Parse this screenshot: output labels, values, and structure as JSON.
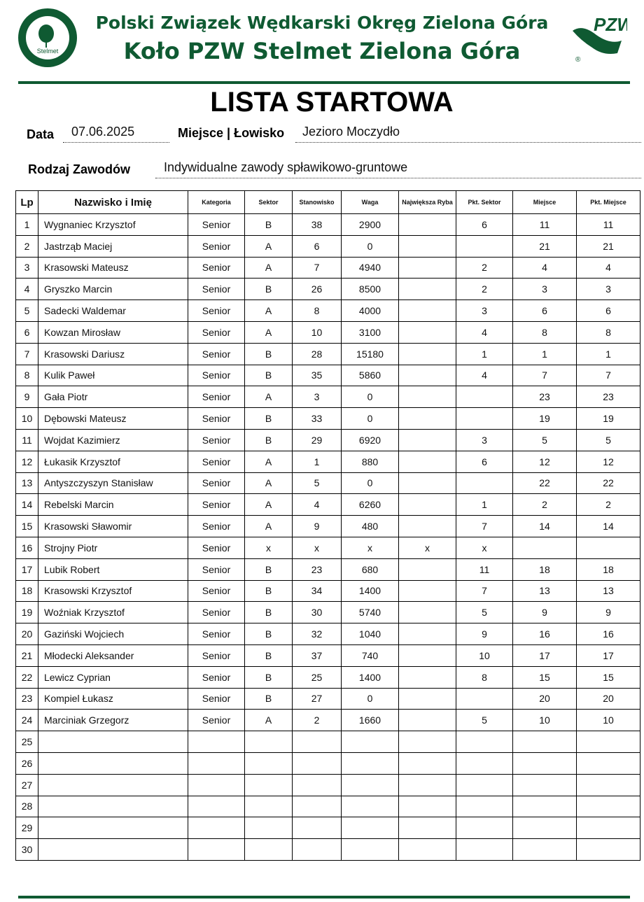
{
  "header": {
    "line1": "Polski Związek Wędkarski Okręg Zielona Góra",
    "line2": "Koło PZW Stelmet Zielona Góra",
    "logo_left": {
      "ring_top": "POLSKI ZWIĄZEK WĘDKARSKI",
      "ring_bottom": "KOŁO ZIELONA GÓRA",
      "center": "Stelmet"
    },
    "logo_right": {
      "text": "PZW",
      "mark": "®"
    },
    "color": "#0f5a32"
  },
  "title": "LISTA STARTOWA",
  "form": {
    "date_label": "Data",
    "date_value": "07.06.2025",
    "place_label": "Miejsce | Łowisko",
    "place_value": "Jezioro Moczydło",
    "type_label": "Rodzaj Zawodów",
    "type_value": "Indywidualne zawody spławikowo-gruntowe"
  },
  "table": {
    "columns": [
      "Lp",
      "Nazwisko i Imię",
      "Kategoria",
      "Sektor",
      "Stanowisko",
      "Waga",
      "Największa Ryba",
      "Pkt. Sektor",
      "Miejsce",
      "Pkt. Miejsce"
    ],
    "rows": [
      [
        "1",
        "Wygnaniec Krzysztof",
        "Senior",
        "B",
        "38",
        "2900",
        "",
        "6",
        "11",
        "11"
      ],
      [
        "2",
        "Jastrząb Maciej",
        "Senior",
        "A",
        "6",
        "0",
        "",
        "",
        "21",
        "21"
      ],
      [
        "3",
        "Krasowski Mateusz",
        "Senior",
        "A",
        "7",
        "4940",
        "",
        "2",
        "4",
        "4"
      ],
      [
        "4",
        "Gryszko Marcin",
        "Senior",
        "B",
        "26",
        "8500",
        "",
        "2",
        "3",
        "3"
      ],
      [
        "5",
        "Sadecki Waldemar",
        "Senior",
        "A",
        "8",
        "4000",
        "",
        "3",
        "6",
        "6"
      ],
      [
        "6",
        "Kowzan Mirosław",
        "Senior",
        "A",
        "10",
        "3100",
        "",
        "4",
        "8",
        "8"
      ],
      [
        "7",
        "Krasowski Dariusz",
        "Senior",
        "B",
        "28",
        "15180",
        "",
        "1",
        "1",
        "1"
      ],
      [
        "8",
        "Kulik Paweł",
        "Senior",
        "B",
        "35",
        "5860",
        "",
        "4",
        "7",
        "7"
      ],
      [
        "9",
        "Gała Piotr",
        "Senior",
        "A",
        "3",
        "0",
        "",
        "",
        "23",
        "23"
      ],
      [
        "10",
        "Dębowski Mateusz",
        "Senior",
        "B",
        "33",
        "0",
        "",
        "",
        "19",
        "19"
      ],
      [
        "11",
        "Wojdat Kazimierz",
        "Senior",
        "B",
        "29",
        "6920",
        "",
        "3",
        "5",
        "5"
      ],
      [
        "12",
        "Łukasik Krzysztof",
        "Senior",
        "A",
        "1",
        "880",
        "",
        "6",
        "12",
        "12"
      ],
      [
        "13",
        "Antyszczyszyn Stanisław",
        "Senior",
        "A",
        "5",
        "0",
        "",
        "",
        "22",
        "22"
      ],
      [
        "14",
        "Rebelski Marcin",
        "Senior",
        "A",
        "4",
        "6260",
        "",
        "1",
        "2",
        "2"
      ],
      [
        "15",
        "Krasowski Sławomir",
        "Senior",
        "A",
        "9",
        "480",
        "",
        "7",
        "14",
        "14"
      ],
      [
        "16",
        "Strojny Piotr",
        "Senior",
        "x",
        "x",
        "x",
        "x",
        "x",
        "",
        ""
      ],
      [
        "17",
        "Lubik Robert",
        "Senior",
        "B",
        "23",
        "680",
        "",
        "11",
        "18",
        "18"
      ],
      [
        "18",
        "Krasowski Krzysztof",
        "Senior",
        "B",
        "34",
        "1400",
        "",
        "7",
        "13",
        "13"
      ],
      [
        "19",
        "Woźniak Krzysztof",
        "Senior",
        "B",
        "30",
        "5740",
        "",
        "5",
        "9",
        "9"
      ],
      [
        "20",
        "Gaziński Wojciech",
        "Senior",
        "B",
        "32",
        "1040",
        "",
        "9",
        "16",
        "16"
      ],
      [
        "21",
        "Młodecki Aleksander",
        "Senior",
        "B",
        "37",
        "740",
        "",
        "10",
        "17",
        "17"
      ],
      [
        "22",
        "Lewicz Cyprian",
        "Senior",
        "B",
        "25",
        "1400",
        "",
        "8",
        "15",
        "15"
      ],
      [
        "23",
        "Kompiel Łukasz",
        "Senior",
        "B",
        "27",
        "0",
        "",
        "",
        "20",
        "20"
      ],
      [
        "24",
        "Marciniak Grzegorz",
        "Senior",
        "A",
        "2",
        "1660",
        "",
        "5",
        "10",
        "10"
      ],
      [
        "25",
        "",
        "",
        "",
        "",
        "",
        "",
        "",
        "",
        ""
      ],
      [
        "26",
        "",
        "",
        "",
        "",
        "",
        "",
        "",
        "",
        ""
      ],
      [
        "27",
        "",
        "",
        "",
        "",
        "",
        "",
        "",
        "",
        ""
      ],
      [
        "28",
        "",
        "",
        "",
        "",
        "",
        "",
        "",
        "",
        ""
      ],
      [
        "29",
        "",
        "",
        "",
        "",
        "",
        "",
        "",
        "",
        ""
      ],
      [
        "30",
        "",
        "",
        "",
        "",
        "",
        "",
        "",
        "",
        ""
      ]
    ]
  }
}
